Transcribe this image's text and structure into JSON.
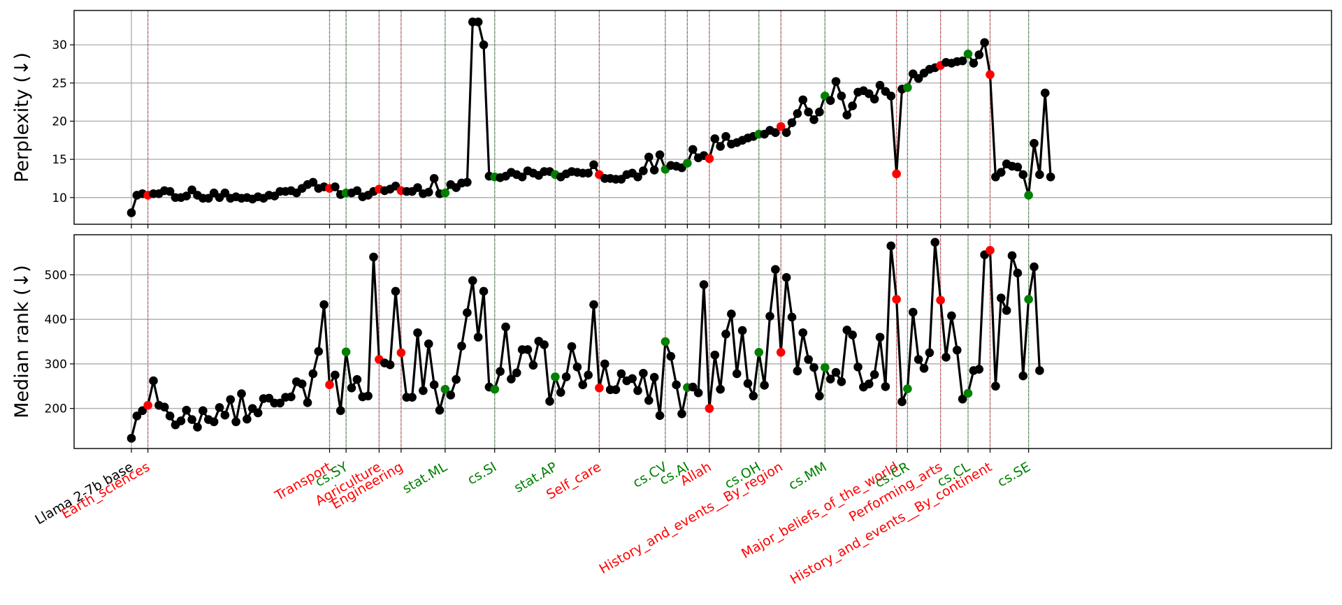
{
  "chart_data": {
    "type": "line",
    "x_start_label": "Llama 2-7b base",
    "panels": [
      {
        "ylabel": "Perplexity (↓)",
        "ylim": [
          6.5,
          34.5
        ],
        "yticks": [
          10,
          15,
          20,
          25,
          30
        ],
        "grid": true
      },
      {
        "ylabel": "Median rank (↓)",
        "ylim": [
          110,
          590
        ],
        "yticks": [
          200,
          300,
          400,
          500
        ],
        "grid": true
      }
    ],
    "markers": [
      {
        "idx": 3,
        "label": "Earth_sciences",
        "group": "red"
      },
      {
        "idx": 36,
        "label": "Transport",
        "group": "red"
      },
      {
        "idx": 39,
        "label": "cs.SY",
        "group": "green"
      },
      {
        "idx": 45,
        "label": "Agriculture",
        "group": "red"
      },
      {
        "idx": 49,
        "label": "Engineering",
        "group": "red"
      },
      {
        "idx": 57,
        "label": "stat.ML",
        "group": "green"
      },
      {
        "idx": 66,
        "label": "cs.SI",
        "group": "green"
      },
      {
        "idx": 77,
        "label": "stat.AP",
        "group": "green"
      },
      {
        "idx": 85,
        "label": "Self_care",
        "group": "red"
      },
      {
        "idx": 97,
        "label": "cs.CV",
        "group": "green"
      },
      {
        "idx": 101,
        "label": "cs.AI",
        "group": "green"
      },
      {
        "idx": 105,
        "label": "Allah",
        "group": "red"
      },
      {
        "idx": 114,
        "label": "cs.OH",
        "group": "green"
      },
      {
        "idx": 118,
        "label": "History_and_events__By_region",
        "group": "red"
      },
      {
        "idx": 126,
        "label": "cs.MM",
        "group": "green"
      },
      {
        "idx": 139,
        "label": "Major_beliefs_of_the_world",
        "group": "red"
      },
      {
        "idx": 141,
        "label": "cs.CR",
        "group": "green"
      },
      {
        "idx": 147,
        "label": "Performing_arts",
        "group": "red"
      },
      {
        "idx": 152,
        "label": "cs.CL",
        "group": "green"
      },
      {
        "idx": 156,
        "label": "History_and_events__By_continent",
        "group": "red"
      },
      {
        "idx": 163,
        "label": "cs.SE",
        "group": "green"
      }
    ],
    "series": [
      {
        "values": [
          8,
          10.3,
          10.5,
          10.3,
          10.5,
          10.5,
          10.9,
          10.8,
          10,
          10,
          10.2,
          11,
          10.3,
          9.9,
          9.9,
          10.6,
          10,
          10.6,
          9.9,
          10.1,
          9.9,
          10,
          9.8,
          10.1,
          9.9,
          10.3,
          10.2,
          10.8,
          10.8,
          10.9,
          10.6,
          11.2,
          11.7,
          12,
          11.2,
          11.4,
          11.2,
          11.4,
          10.4,
          10.6,
          10.6,
          10.9,
          10.1,
          10.3,
          10.8,
          11.1,
          10.9,
          11.1,
          11.5,
          10.9,
          10.8,
          10.8,
          11.3,
          10.5,
          10.7,
          12.5,
          10.5,
          10.6,
          11.7,
          11.3,
          11.9,
          12,
          33,
          33,
          30,
          12.8,
          12.7,
          12.6,
          12.8,
          13.3,
          13,
          12.7,
          13.5,
          13.2,
          12.9,
          13.4,
          13.4,
          13,
          12.7,
          13.1,
          13.4,
          13.3,
          13.2,
          13.2,
          14.3,
          13,
          12.5,
          12.5,
          12.4,
          12.4,
          13,
          13.2,
          12.7,
          13.5,
          15.3,
          13.6,
          15.6,
          13.7,
          14.2,
          14.1,
          13.9,
          14.5,
          16.3,
          15.2,
          15.5,
          15.1,
          17.7,
          16.7,
          18,
          17,
          17.2,
          17.5,
          17.8,
          18,
          18.3,
          18.3,
          18.8,
          18.5,
          19.3,
          18.5,
          19.8,
          21,
          22.8,
          21.2,
          20.2,
          21.2,
          23.3,
          22.7,
          25.2,
          23.3,
          20.8,
          22,
          23.8,
          24,
          23.6,
          22.9,
          24.7,
          23.9,
          23.3,
          13.1,
          24.2,
          24.4,
          26.2,
          25.6,
          26.3,
          26.8,
          27,
          27.3,
          27.7,
          27.6,
          27.8,
          27.9,
          28.8,
          27.6,
          28.7,
          30.3,
          26.1,
          12.7,
          13.3,
          14.4,
          14.1,
          14,
          13,
          10.3,
          17.1,
          13,
          23.7,
          12.7
        ]
      },
      {
        "values": [
          133,
          183,
          195,
          207,
          262,
          207,
          203,
          183,
          163,
          172,
          196,
          175,
          158,
          195,
          175,
          170,
          202,
          185,
          220,
          170,
          233,
          176,
          200,
          190,
          222,
          223,
          212,
          212,
          225,
          226,
          260,
          255,
          213,
          278,
          328,
          433,
          253,
          275,
          195,
          327,
          246,
          265,
          226,
          228,
          540,
          310,
          302,
          298,
          463,
          325,
          225,
          225,
          370,
          240,
          345,
          253,
          196,
          243,
          230,
          265,
          340,
          415,
          487,
          360,
          463,
          248,
          243,
          283,
          383,
          266,
          280,
          332,
          332,
          297,
          351,
          343,
          216,
          271,
          236,
          271,
          339,
          293,
          253,
          275,
          433,
          246,
          300,
          242,
          242,
          278,
          262,
          267,
          240,
          279,
          218,
          270,
          184,
          350,
          317,
          253,
          188,
          247,
          248,
          235,
          478,
          200,
          320,
          243,
          367,
          412,
          278,
          375,
          256,
          228,
          326,
          252,
          407,
          512,
          326,
          494,
          405,
          284,
          370,
          310,
          292,
          228,
          292,
          266,
          281,
          260,
          376,
          365,
          293,
          248,
          255,
          276,
          360,
          249,
          565,
          445,
          215,
          244,
          416,
          310,
          290,
          325,
          573,
          443,
          315,
          408,
          331,
          221,
          234,
          285,
          288,
          545,
          555,
          250,
          448,
          420,
          543,
          504,
          273,
          445,
          518,
          285
        ]
      }
    ]
  }
}
